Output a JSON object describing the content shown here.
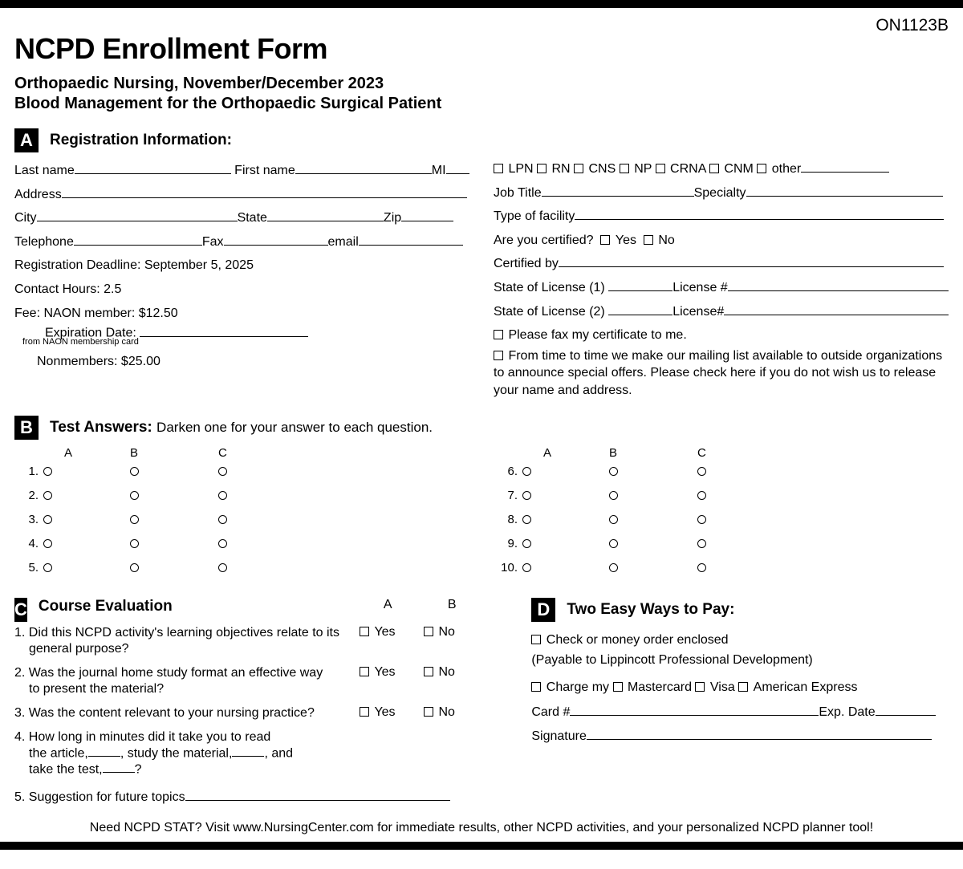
{
  "form_code": "ON1123B",
  "title": "NCPD Enrollment Form",
  "subtitle_line1": "Orthopaedic Nursing, November/December 2023",
  "subtitle_line2": "Blood Management for the Orthopaedic Surgical Patient",
  "sectionA": {
    "letter": "A",
    "title": "Registration Information:",
    "labels": {
      "last_name": "Last name",
      "first_name": "First name",
      "mi": "MI",
      "address": "Address",
      "city": "City",
      "state": "State",
      "zip": "Zip",
      "telephone": "Telephone",
      "fax": "Fax",
      "email": "email",
      "deadline": "Registration Deadline: September 5, 2025",
      "hours": "Contact Hours: 2.5",
      "fee_member": "Fee: NAON member: $12.50",
      "exp_date": "Expiration Date:",
      "exp_note": "from NAON membership card",
      "nonmember": "Nonmembers: $25.00"
    },
    "right": {
      "creds": [
        "LPN",
        "RN",
        "CNS",
        "NP",
        "CRNA",
        "CNM",
        "other"
      ],
      "job_title": "Job Title",
      "specialty": "Specialty",
      "facility": "Type of facility",
      "certified_q": "Are you certified?",
      "yes": "Yes",
      "no": "No",
      "certified_by": "Certified by",
      "license1a": "State of License (1)",
      "license1b": "License #",
      "license2a": "State of License (2)",
      "license2b": "License#",
      "fax_cert": "Please fax my certificate to me.",
      "mailing": "From time to time we make our mailing list available to outside organizations to announce special offers. Please check here if you do not wish us to release your name and address."
    }
  },
  "sectionB": {
    "letter": "B",
    "title": "Test Answers:",
    "instruction": "Darken one for your answer to each question.",
    "headers": [
      "A",
      "B",
      "C"
    ],
    "left_nums": [
      "1.",
      "2.",
      "3.",
      "4.",
      "5."
    ],
    "right_nums": [
      "6.",
      "7.",
      "8.",
      "9.",
      "10."
    ]
  },
  "sectionC": {
    "letter": "C",
    "title": "Course Evaluation",
    "col_a": "A",
    "col_b": "B",
    "yes": "Yes",
    "no": "No",
    "q1_num": "1.",
    "q1a": "Did this NCPD activity's learning objectives relate to its",
    "q1b": "general purpose?",
    "q2_num": "2.",
    "q2a": "Was the journal home study format an effective way",
    "q2b": "to present the material?",
    "q3_num": "3.",
    "q3": "Was the content relevant to your nursing practice?",
    "q4_num": "4.",
    "q4a": "How long in minutes did it take you to read",
    "q4b_1": "the article,",
    "q4b_2": ", study the material,",
    "q4b_3": ", and",
    "q4c_1": "take the test,",
    "q4c_2": "?",
    "q5_num": "5.",
    "q5": "Suggestion for future topics"
  },
  "sectionD": {
    "letter": "D",
    "title": "Two Easy Ways to Pay:",
    "check": "Check or money order enclosed",
    "payable": "(Payable to Lippincott Professional Development)",
    "charge": "Charge my",
    "cards": [
      "Mastercard",
      "Visa",
      "American Express"
    ],
    "card_num": "Card #",
    "exp": "Exp. Date",
    "sig": "Signature"
  },
  "footer": "Need NCPD STAT? Visit www.NursingCenter.com for immediate results, other NCPD activities, and your personalized NCPD planner tool!"
}
